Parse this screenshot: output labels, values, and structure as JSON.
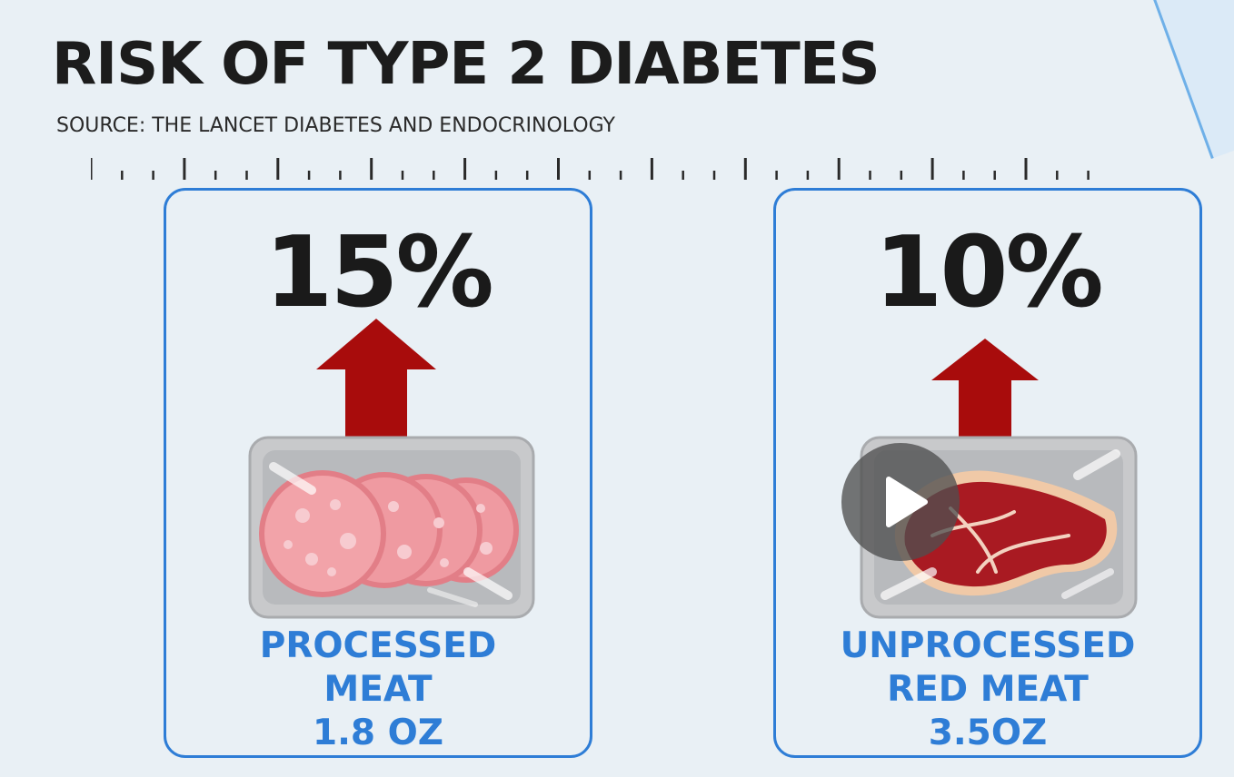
{
  "header": {
    "title": "RISK OF TYPE 2 DIABETES",
    "source": "SOURCE: THE LANCET DIABETES AND ENDOCRINOLOGY"
  },
  "cards": [
    {
      "percent": "15%",
      "label_line1": "PROCESSED",
      "label_line2": "MEAT",
      "label_line3": "1.8 OZ",
      "icon": "salami-slices-tray-icon"
    },
    {
      "percent": "10%",
      "label_line1": "UNPROCESSED",
      "label_line2": "RED MEAT",
      "label_line3": "3.5OZ",
      "icon": "red-meat-steak-tray-icon"
    }
  ],
  "colors": {
    "background": "#e9f0f5",
    "accent_blue": "#2e7dd6",
    "arrow_red": "#a80c0c",
    "text_dark": "#1a1a1a"
  },
  "overlay": {
    "icon": "play-icon"
  }
}
